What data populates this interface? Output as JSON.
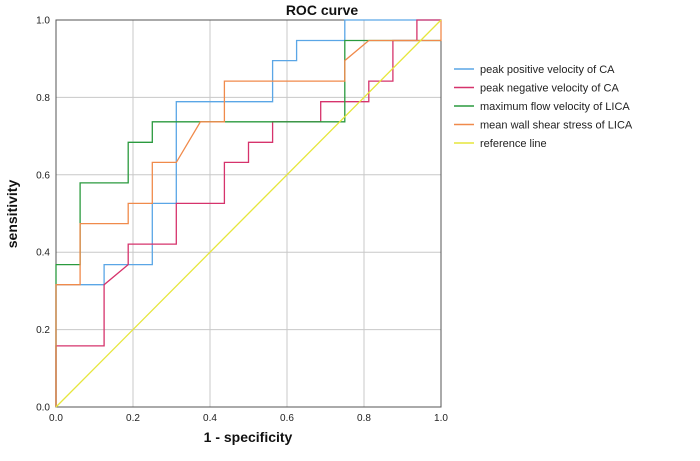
{
  "chart_data": {
    "type": "line",
    "title": "ROC curve",
    "xlabel": "1 - specificity",
    "ylabel": "sensitivity",
    "xlim": [
      0,
      1
    ],
    "ylim": [
      0,
      1
    ],
    "x_ticks": [
      "0.0",
      "0.2",
      "0.4",
      "0.6",
      "0.8",
      "1.0"
    ],
    "y_ticks": [
      "0.0",
      "0.2",
      "0.4",
      "0.6",
      "0.8",
      "1.0"
    ],
    "grid": true,
    "legend_position": "right",
    "series": [
      {
        "name": "peak positive velocity of CA",
        "color": "#5aa6e6",
        "x": [
          0,
          0,
          0.125,
          0.125,
          0.1875,
          0.1875,
          0.25,
          0.25,
          0.3125,
          0.3125,
          0.5625,
          0.5625,
          0.625,
          0.625,
          0.75,
          0.75,
          1.0
        ],
        "y": [
          0,
          0.316,
          0.316,
          0.368,
          0.368,
          0.368,
          0.368,
          0.526,
          0.526,
          0.789,
          0.789,
          0.895,
          0.895,
          0.947,
          0.947,
          1.0,
          1.0
        ]
      },
      {
        "name": "peak negative velocity of CA",
        "color": "#d6336c",
        "x": [
          0,
          0,
          0.125,
          0.125,
          0.1875,
          0.1875,
          0.3125,
          0.3125,
          0.4375,
          0.4375,
          0.5,
          0.5,
          0.5625,
          0.5625,
          0.6875,
          0.6875,
          0.8125,
          0.8125,
          0.875,
          0.875,
          0.9375,
          0.9375,
          1.0
        ],
        "y": [
          0,
          0.158,
          0.158,
          0.316,
          0.368,
          0.421,
          0.421,
          0.526,
          0.526,
          0.632,
          0.632,
          0.684,
          0.684,
          0.737,
          0.737,
          0.789,
          0.789,
          0.842,
          0.842,
          0.947,
          0.947,
          1.0,
          1.0
        ]
      },
      {
        "name": "maximum flow velocity of LICA",
        "color": "#2a9a3e",
        "x": [
          0,
          0,
          0.0625,
          0.0625,
          0.1875,
          0.1875,
          0.25,
          0.25,
          0.75,
          0.75,
          1.0
        ],
        "y": [
          0,
          0.368,
          0.368,
          0.579,
          0.579,
          0.684,
          0.684,
          0.737,
          0.737,
          0.947,
          0.947
        ]
      },
      {
        "name": "mean wall shear stress of LICA",
        "color": "#f08a4b",
        "x": [
          0,
          0,
          0.0625,
          0.0625,
          0.1875,
          0.1875,
          0.25,
          0.25,
          0.3125,
          0.3125,
          0.375,
          0.4375,
          0.4375,
          0.75,
          0.75,
          0.8125,
          1.0,
          1.0
        ],
        "y": [
          0,
          0.316,
          0.316,
          0.474,
          0.474,
          0.526,
          0.526,
          0.632,
          0.632,
          0.632,
          0.737,
          0.737,
          0.842,
          0.842,
          0.895,
          0.947,
          0.947,
          1.0
        ]
      },
      {
        "name": "reference line",
        "color": "#e6e63c",
        "x": [
          0,
          1
        ],
        "y": [
          0,
          1
        ]
      }
    ]
  }
}
